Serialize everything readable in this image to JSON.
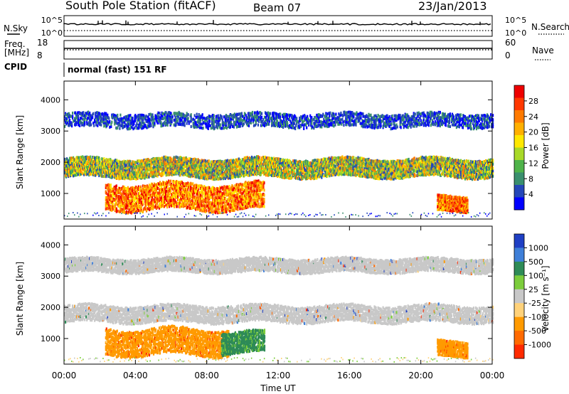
{
  "header": {
    "title": "South Pole Station (fitACF)",
    "beam": "Beam 07",
    "date": "23/Jan/2013"
  },
  "top_panels": {
    "nsky_label": "N.Sky",
    "nsearch_label": "N.Search",
    "freq_label_line1": "Freq.",
    "freq_label_line2": "[MHz]",
    "nave_label": "Nave",
    "cpid_label": "CPID",
    "cpid_value": "normal (fast) 151 RF",
    "noise_ticks_left": [
      "10^5",
      "10^0"
    ],
    "noise_ticks_right": [
      "10^5",
      "10^0"
    ],
    "freq_ticks_left": [
      "18",
      "8"
    ],
    "freq_ticks_right": [
      "60",
      "0"
    ]
  },
  "chart_data": [
    {
      "type": "heatmap",
      "panel": "power",
      "ylabel": "Slant Range [km]",
      "xlabel": "Time UT",
      "x_ticks": [
        "00:00",
        "04:00",
        "08:00",
        "12:00",
        "16:00",
        "20:00",
        "00:00"
      ],
      "y_ticks": [
        "1000",
        "2000",
        "3000",
        "4000"
      ],
      "xlim_hours": [
        0,
        24
      ],
      "ylim_km": [
        180,
        4600
      ],
      "colorbar": {
        "label": "Power [dB]",
        "ticks": [
          "4",
          "8",
          "12",
          "16",
          "20",
          "24",
          "28"
        ],
        "colors": [
          "#0000ff",
          "#2547b8",
          "#3a8f6e",
          "#4fb34a",
          "#a8d928",
          "#ffe800",
          "#ffb000",
          "#ff7a00",
          "#ff3800",
          "#ee0000"
        ]
      },
      "features": [
        {
          "t0": 0.0,
          "t1": 24.0,
          "r0": 1500,
          "r1": 2100,
          "description_level": "moderate"
        },
        {
          "t0": 0.0,
          "t1": 24.0,
          "r0": 3100,
          "r1": 3550,
          "description_level": "weak"
        },
        {
          "t0": 2.3,
          "t1": 11.2,
          "r0": 450,
          "r1": 1300,
          "description_level": "strong"
        },
        {
          "t0": 20.9,
          "t1": 22.6,
          "r0": 400,
          "r1": 900,
          "description_level": "strong"
        }
      ]
    },
    {
      "type": "heatmap",
      "panel": "velocity",
      "ylabel": "Slant Range [km]",
      "xlabel": "Time UT",
      "x_ticks": [
        "00:00",
        "04:00",
        "08:00",
        "12:00",
        "16:00",
        "20:00",
        "00:00"
      ],
      "y_ticks": [
        "1000",
        "2000",
        "3000",
        "4000"
      ],
      "xlim_hours": [
        0,
        24
      ],
      "ylim_km": [
        180,
        4600
      ],
      "colorbar": {
        "label": "Velocity [m s⁻¹]",
        "ticks": [
          "1000",
          "500",
          "100",
          "25",
          "-25",
          "-100",
          "-500",
          "-1000"
        ],
        "colors": [
          "#1f3fc4",
          "#3f7fd8",
          "#2e8b57",
          "#7ccd3c",
          "#c8c8c8",
          "#ffd27a",
          "#ff9a00",
          "#ff6a00",
          "#ff2a00"
        ]
      },
      "features": [
        {
          "t0": 0.0,
          "t1": 24.0,
          "r0": 1500,
          "r1": 2050,
          "description_level": "ground-scatter"
        },
        {
          "t0": 0.0,
          "t1": 24.0,
          "r0": 3100,
          "r1": 3550,
          "description_level": "ground-scatter"
        },
        {
          "t0": 2.3,
          "t1": 9.2,
          "r0": 450,
          "r1": 1300,
          "description_level": "negative"
        },
        {
          "t0": 8.8,
          "t1": 11.2,
          "r0": 500,
          "r1": 1200,
          "description_level": "positive"
        },
        {
          "t0": 20.9,
          "t1": 22.6,
          "r0": 400,
          "r1": 900,
          "description_level": "negative"
        }
      ]
    }
  ]
}
